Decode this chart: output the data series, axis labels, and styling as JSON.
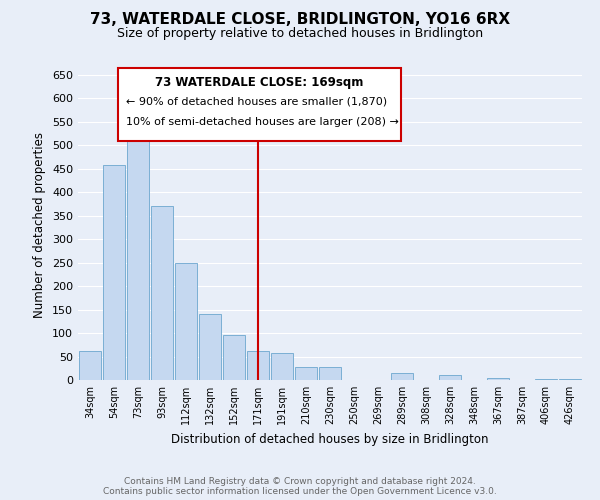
{
  "title": "73, WATERDALE CLOSE, BRIDLINGTON, YO16 6RX",
  "subtitle": "Size of property relative to detached houses in Bridlington",
  "xlabel": "Distribution of detached houses by size in Bridlington",
  "ylabel": "Number of detached properties",
  "footnote1": "Contains HM Land Registry data © Crown copyright and database right 2024.",
  "footnote2": "Contains public sector information licensed under the Open Government Licence v3.0.",
  "bar_labels": [
    "34sqm",
    "54sqm",
    "73sqm",
    "93sqm",
    "112sqm",
    "132sqm",
    "152sqm",
    "171sqm",
    "191sqm",
    "210sqm",
    "230sqm",
    "250sqm",
    "269sqm",
    "289sqm",
    "308sqm",
    "328sqm",
    "348sqm",
    "367sqm",
    "387sqm",
    "406sqm",
    "426sqm"
  ],
  "bar_values": [
    62,
    457,
    520,
    370,
    250,
    140,
    95,
    62,
    58,
    27,
    28,
    0,
    0,
    14,
    0,
    10,
    0,
    5,
    0,
    3,
    2
  ],
  "bar_color": "#c5d8f0",
  "bar_edge_color": "#7bafd4",
  "vline_x": 7,
  "vline_color": "#cc0000",
  "ylim": [
    0,
    660
  ],
  "yticks": [
    0,
    50,
    100,
    150,
    200,
    250,
    300,
    350,
    400,
    450,
    500,
    550,
    600,
    650
  ],
  "annotation_title": "73 WATERDALE CLOSE: 169sqm",
  "annotation_line1": "← 90% of detached houses are smaller (1,870)",
  "annotation_line2": "10% of semi-detached houses are larger (208) →",
  "annotation_box_color": "#ffffff",
  "annotation_box_edge": "#cc0000",
  "bg_color": "#e8eef8",
  "grid_color": "#ffffff",
  "title_fontsize": 11,
  "subtitle_fontsize": 9
}
